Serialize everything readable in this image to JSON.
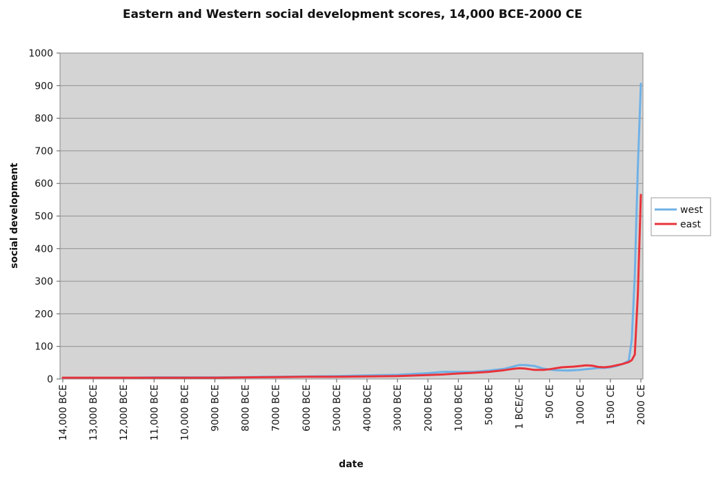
{
  "chart_data": {
    "type": "line",
    "title": "Eastern and Western social development scores, 14,000 BCE-2000 CE",
    "xlabel": "date",
    "ylabel": "social development",
    "ylim": [
      0,
      1000
    ],
    "y_ticks": [
      0,
      100,
      200,
      300,
      400,
      500,
      600,
      700,
      800,
      900,
      1000
    ],
    "grid": true,
    "legend_position": "right",
    "x_ticks": [
      {
        "year": -14000,
        "label": "14,000 BCE"
      },
      {
        "year": -13000,
        "label": "13,000 BCE"
      },
      {
        "year": -12000,
        "label": "12,000 BCE"
      },
      {
        "year": -11000,
        "label": "11,000 BCE"
      },
      {
        "year": -10000,
        "label": "10,000 BCE"
      },
      {
        "year": -9000,
        "label": "9000 BCE"
      },
      {
        "year": -8000,
        "label": "8000 BCE"
      },
      {
        "year": -7000,
        "label": "7000 BCE"
      },
      {
        "year": -6000,
        "label": "6000 BCE"
      },
      {
        "year": -5000,
        "label": "5000 BCE"
      },
      {
        "year": -4000,
        "label": "4000 BCE"
      },
      {
        "year": -3000,
        "label": "3000 BCE"
      },
      {
        "year": -2000,
        "label": "2000 BCE"
      },
      {
        "year": -1000,
        "label": "1000 BCE"
      },
      {
        "year": -500,
        "label": "500 BCE"
      },
      {
        "year": 0,
        "label": "1 BCE/CE"
      },
      {
        "year": 500,
        "label": "500 CE"
      },
      {
        "year": 1000,
        "label": "1000 CE"
      },
      {
        "year": 1500,
        "label": "1500 CE"
      },
      {
        "year": 2000,
        "label": "2000 CE"
      }
    ],
    "series": [
      {
        "name": "west",
        "color": "#6fb1e6",
        "points": [
          [
            -14000,
            4
          ],
          [
            -13000,
            4
          ],
          [
            -12000,
            4
          ],
          [
            -11000,
            5
          ],
          [
            -10000,
            5
          ],
          [
            -9000,
            5
          ],
          [
            -8000,
            6
          ],
          [
            -7000,
            7
          ],
          [
            -6000,
            8
          ],
          [
            -5000,
            9
          ],
          [
            -4000,
            11
          ],
          [
            -3000,
            13
          ],
          [
            -2000,
            18
          ],
          [
            -1500,
            22
          ],
          [
            -1000,
            22
          ],
          [
            -750,
            22
          ],
          [
            -500,
            26
          ],
          [
            -250,
            31
          ],
          [
            -100,
            38
          ],
          [
            0,
            43
          ],
          [
            100,
            43
          ],
          [
            250,
            40
          ],
          [
            400,
            32
          ],
          [
            500,
            29
          ],
          [
            600,
            27
          ],
          [
            800,
            26
          ],
          [
            1000,
            28
          ],
          [
            1100,
            30
          ],
          [
            1200,
            32
          ],
          [
            1300,
            34
          ],
          [
            1400,
            34
          ],
          [
            1500,
            36
          ],
          [
            1600,
            40
          ],
          [
            1700,
            46
          ],
          [
            1800,
            56
          ],
          [
            1850,
            120
          ],
          [
            1900,
            320
          ],
          [
            1950,
            650
          ],
          [
            2000,
            906
          ]
        ]
      },
      {
        "name": "east",
        "color": "#e8333a",
        "points": [
          [
            -14000,
            4
          ],
          [
            -13000,
            4
          ],
          [
            -12000,
            4
          ],
          [
            -11000,
            4
          ],
          [
            -10000,
            4
          ],
          [
            -9000,
            4
          ],
          [
            -8000,
            5
          ],
          [
            -7000,
            6
          ],
          [
            -6000,
            7
          ],
          [
            -5000,
            7
          ],
          [
            -4000,
            8
          ],
          [
            -3000,
            9
          ],
          [
            -2000,
            12
          ],
          [
            -1500,
            14
          ],
          [
            -1000,
            17
          ],
          [
            -750,
            19
          ],
          [
            -500,
            22
          ],
          [
            -250,
            27
          ],
          [
            -100,
            31
          ],
          [
            0,
            33
          ],
          [
            100,
            32
          ],
          [
            250,
            28
          ],
          [
            400,
            28
          ],
          [
            500,
            30
          ],
          [
            600,
            33
          ],
          [
            700,
            36
          ],
          [
            800,
            37
          ],
          [
            900,
            38
          ],
          [
            1000,
            40
          ],
          [
            1100,
            42
          ],
          [
            1200,
            41
          ],
          [
            1300,
            37
          ],
          [
            1400,
            36
          ],
          [
            1500,
            38
          ],
          [
            1600,
            42
          ],
          [
            1700,
            46
          ],
          [
            1800,
            52
          ],
          [
            1850,
            58
          ],
          [
            1900,
            75
          ],
          [
            1950,
            260
          ],
          [
            2000,
            565
          ]
        ]
      }
    ]
  }
}
